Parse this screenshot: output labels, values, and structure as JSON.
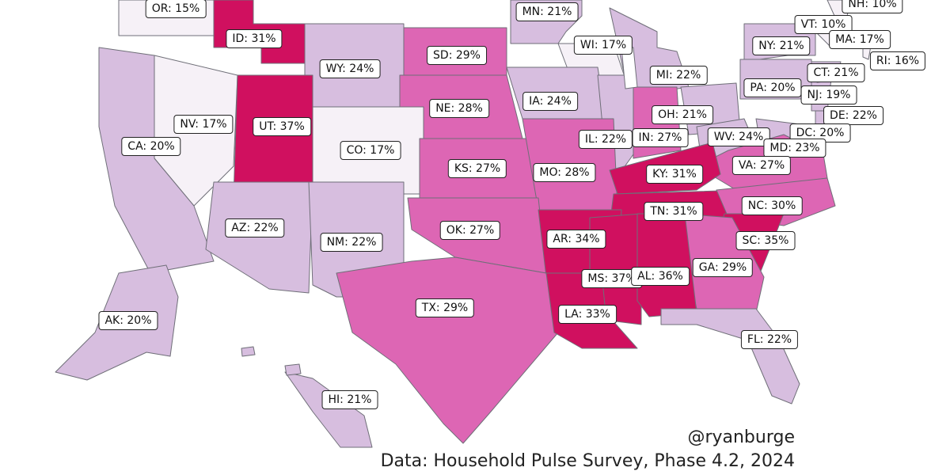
{
  "colors": {
    "tier_lightest": "#f6f1f7",
    "tier_light": "#d7bedf",
    "tier_mid": "#dd66b4",
    "tier_dark": "#d0105f",
    "border": "#6f6f78"
  },
  "states": [
    {
      "abbr": "OR",
      "label": "OR: 15%",
      "value": 15
    },
    {
      "abbr": "ID",
      "label": "ID: 31%",
      "value": 31
    },
    {
      "abbr": "MN",
      "label": "MN: 21%",
      "value": 21
    },
    {
      "abbr": "NH",
      "label": "NH: 10%",
      "value": 10
    },
    {
      "abbr": "VT",
      "label": "VT: 10%",
      "value": 10
    },
    {
      "abbr": "MA",
      "label": "MA: 17%",
      "value": 17
    },
    {
      "abbr": "RI",
      "label": "RI: 16%",
      "value": 16
    },
    {
      "abbr": "WI",
      "label": "WI: 17%",
      "value": 17
    },
    {
      "abbr": "NY",
      "label": "NY: 21%",
      "value": 21
    },
    {
      "abbr": "SD",
      "label": "SD: 29%",
      "value": 29
    },
    {
      "abbr": "WY",
      "label": "WY: 24%",
      "value": 24
    },
    {
      "abbr": "MI",
      "label": "MI: 22%",
      "value": 22
    },
    {
      "abbr": "CT",
      "label": "CT: 21%",
      "value": 21
    },
    {
      "abbr": "PA",
      "label": "PA: 20%",
      "value": 20
    },
    {
      "abbr": "NJ",
      "label": "NJ: 19%",
      "value": 19
    },
    {
      "abbr": "NE",
      "label": "NE: 28%",
      "value": 28
    },
    {
      "abbr": "IA",
      "label": "IA: 24%",
      "value": 24
    },
    {
      "abbr": "DE",
      "label": "DE: 22%",
      "value": 22
    },
    {
      "abbr": "OH",
      "label": "OH: 21%",
      "value": 21
    },
    {
      "abbr": "NV",
      "label": "NV: 17%",
      "value": 17
    },
    {
      "abbr": "UT",
      "label": "UT: 37%",
      "value": 37
    },
    {
      "abbr": "DC",
      "label": "DC: 20%",
      "value": 20
    },
    {
      "abbr": "IL",
      "label": "IL: 22%",
      "value": 22
    },
    {
      "abbr": "IN",
      "label": "IN: 27%",
      "value": 27
    },
    {
      "abbr": "WV",
      "label": "WV: 24%",
      "value": 24
    },
    {
      "abbr": "MD",
      "label": "MD: 23%",
      "value": 23
    },
    {
      "abbr": "CA",
      "label": "CA: 20%",
      "value": 20
    },
    {
      "abbr": "CO",
      "label": "CO: 17%",
      "value": 17
    },
    {
      "abbr": "KS",
      "label": "KS: 27%",
      "value": 27
    },
    {
      "abbr": "VA",
      "label": "VA: 27%",
      "value": 27
    },
    {
      "abbr": "MO",
      "label": "MO: 28%",
      "value": 28
    },
    {
      "abbr": "KY",
      "label": "KY: 31%",
      "value": 31
    },
    {
      "abbr": "TN",
      "label": "TN: 31%",
      "value": 31
    },
    {
      "abbr": "NC",
      "label": "NC: 30%",
      "value": 30
    },
    {
      "abbr": "AZ",
      "label": "AZ: 22%",
      "value": 22
    },
    {
      "abbr": "OK",
      "label": "OK: 27%",
      "value": 27
    },
    {
      "abbr": "NM",
      "label": "NM: 22%",
      "value": 22
    },
    {
      "abbr": "AR",
      "label": "AR: 34%",
      "value": 34
    },
    {
      "abbr": "SC",
      "label": "SC: 35%",
      "value": 35
    },
    {
      "abbr": "GA",
      "label": "GA: 29%",
      "value": 29
    },
    {
      "abbr": "MS",
      "label": "MS: 37%",
      "value": 37
    },
    {
      "abbr": "AL",
      "label": "AL: 36%",
      "value": 36
    },
    {
      "abbr": "AK",
      "label": "AK: 20%",
      "value": 20
    },
    {
      "abbr": "TX",
      "label": "TX: 29%",
      "value": 29
    },
    {
      "abbr": "LA",
      "label": "LA: 33%",
      "value": 33
    },
    {
      "abbr": "FL",
      "label": "FL: 22%",
      "value": 22
    },
    {
      "abbr": "HI",
      "label": "HI: 21%",
      "value": 21
    }
  ],
  "credit": {
    "handle": "@ryanburge",
    "source": "Data: Household Pulse Survey, Phase 4.2, 2024"
  }
}
